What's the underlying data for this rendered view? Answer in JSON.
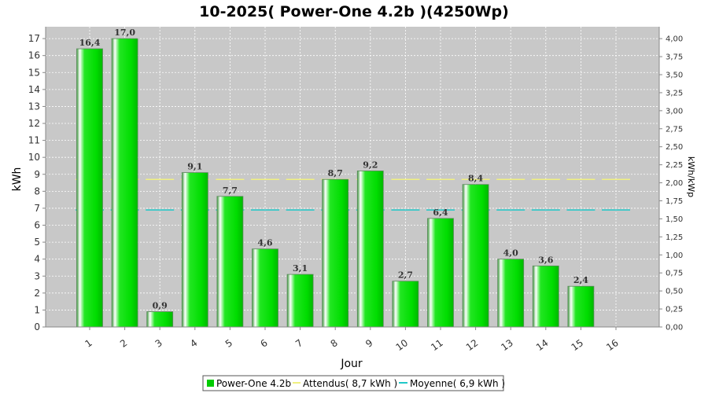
{
  "chart_data": {
    "type": "bar",
    "title": "10-2025( Power-One 4.2b )(4250Wp)",
    "xlabel": "Jour",
    "ylabel": "kWh",
    "y2label": "kWh/kWp",
    "categories": [
      "1",
      "2",
      "3",
      "4",
      "5",
      "6",
      "7",
      "8",
      "9",
      "10",
      "11",
      "12",
      "13",
      "14",
      "15",
      "16"
    ],
    "series": [
      {
        "name": "Power-One 4.2b",
        "type": "bar",
        "color": "#00dd00",
        "values": [
          16.4,
          17.0,
          0.9,
          9.1,
          7.7,
          4.6,
          3.1,
          8.7,
          9.2,
          2.7,
          6.4,
          8.4,
          4.0,
          3.6,
          2.4,
          null
        ],
        "labels": [
          "16,4",
          "17,0",
          "0,9",
          "9,1",
          "7,7",
          "4,6",
          "3,1",
          "8,7",
          "9,2",
          "2,7",
          "6,4",
          "8,4",
          "4,0",
          "3,6",
          "2,4",
          ""
        ]
      },
      {
        "name": "Attendus( 8,7 kWh )",
        "type": "line-dashed",
        "color": "#f0f080",
        "value": 8.7
      },
      {
        "name": "Moyenne( 6,9 kWh )",
        "type": "line-dashed",
        "color": "#20c8c8",
        "value": 6.9
      }
    ],
    "ylim": [
      0,
      17.7
    ],
    "yticks": [
      "0",
      "1",
      "2",
      "3",
      "4",
      "5",
      "6",
      "7",
      "8",
      "9",
      "10",
      "11",
      "12",
      "13",
      "14",
      "15",
      "16",
      "17"
    ],
    "y2lim": [
      0,
      4.165
    ],
    "y2ticks": [
      "0,00",
      "0,25",
      "0,50",
      "0,75",
      "1,00",
      "1,25",
      "1,50",
      "1,75",
      "2,00",
      "2,25",
      "2,50",
      "2,75",
      "3,00",
      "3,25",
      "3,50",
      "3,75",
      "4,00"
    ],
    "grid": true,
    "legend_position": "bottom",
    "plot_background": "#c8c8c8"
  }
}
